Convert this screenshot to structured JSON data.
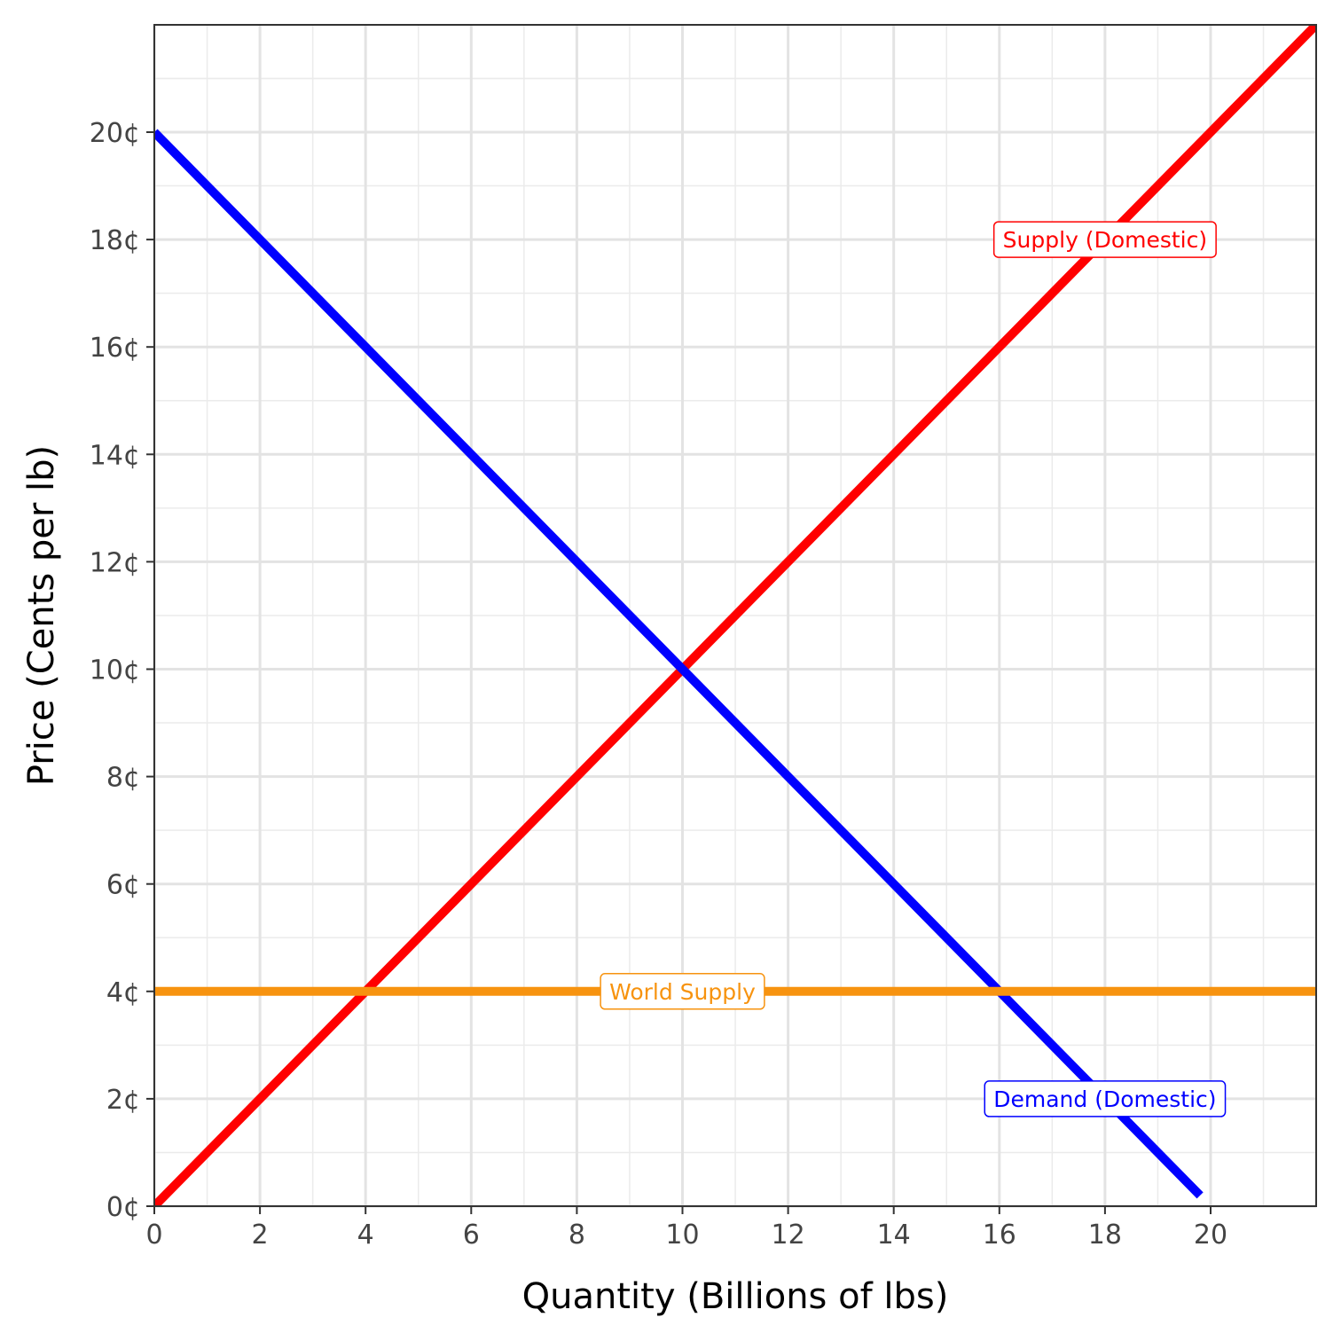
{
  "chart_data": {
    "type": "line",
    "xlabel": "Quantity (Billions of lbs)",
    "ylabel": "Price (Cents per lb)",
    "xlim": [
      0,
      22
    ],
    "ylim": [
      0,
      20.2
    ],
    "x_ticks": [
      0,
      2,
      4,
      6,
      8,
      10,
      12,
      14,
      16,
      18,
      20
    ],
    "x_tick_labels": [
      "0",
      "2",
      "4",
      "6",
      "8",
      "10",
      "12",
      "14",
      "16",
      "18",
      "20"
    ],
    "y_ticks": [
      0,
      2,
      4,
      6,
      8,
      10,
      12,
      14,
      16,
      18,
      20
    ],
    "y_tick_labels": [
      "0¢",
      "2¢",
      "4¢",
      "6¢",
      "8¢",
      "10¢",
      "12¢",
      "14¢",
      "16¢",
      "18¢",
      "20¢"
    ],
    "grid": true,
    "minor_grid": true,
    "series": [
      {
        "name": "Supply (Domestic)",
        "color": "#ff0000",
        "x": [
          0,
          22
        ],
        "y": [
          0,
          22
        ],
        "label_at": [
          18,
          18
        ]
      },
      {
        "name": "Demand (Domestic)",
        "color": "#0000ff",
        "x": [
          0,
          19.8
        ],
        "y": [
          20,
          0.2
        ],
        "label_at": [
          18,
          2
        ]
      },
      {
        "name": "World Supply",
        "color": "#f7930f",
        "x": [
          0,
          22
        ],
        "y": [
          4,
          4
        ],
        "label_at": [
          10,
          4
        ]
      }
    ]
  }
}
